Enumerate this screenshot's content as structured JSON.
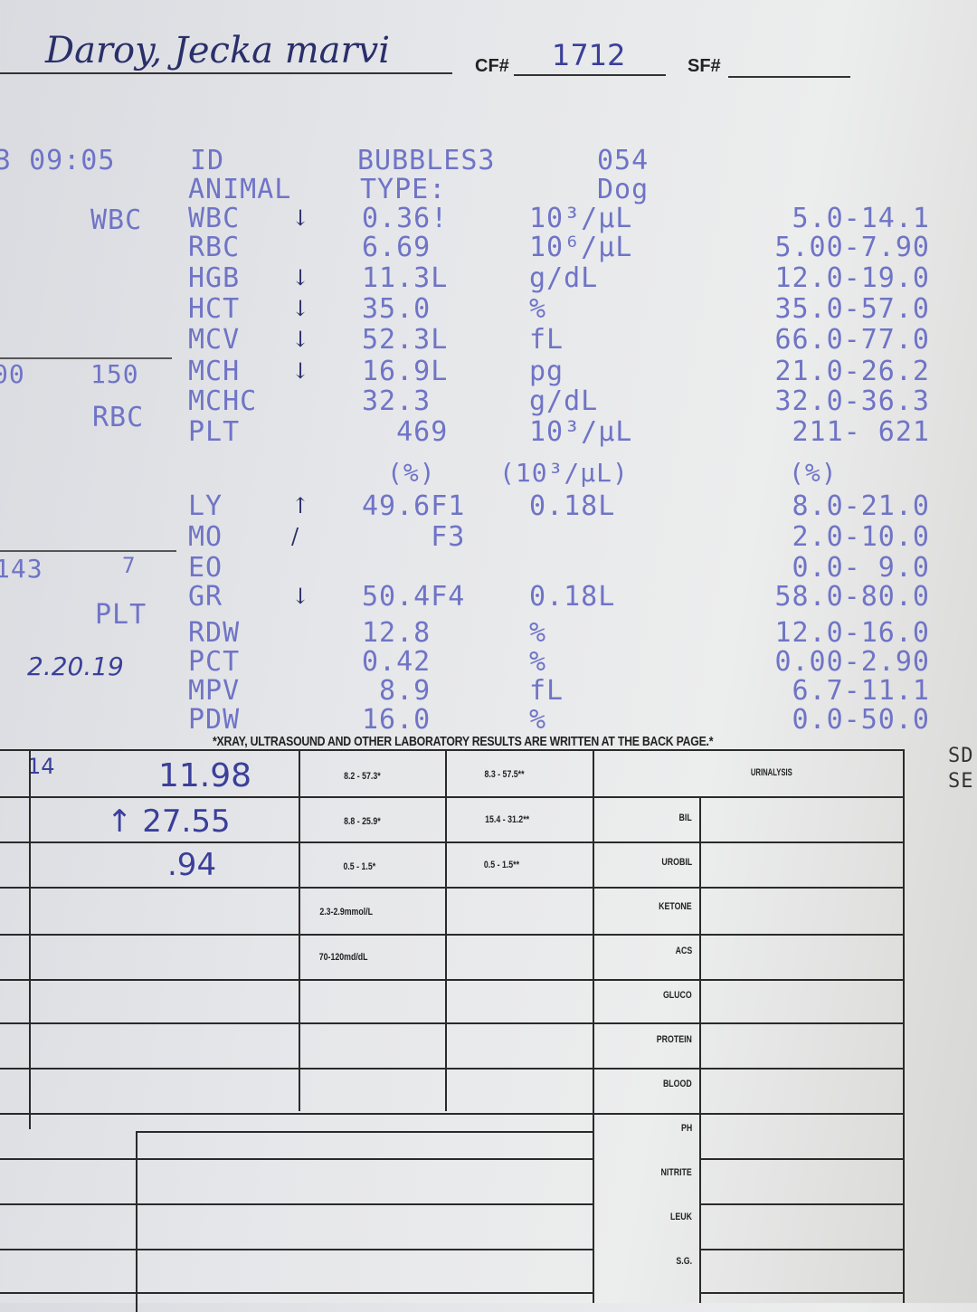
{
  "header": {
    "patient_name": "Daroy, Jecka marvi",
    "cf_label": "CF#",
    "cf_value": "1712",
    "sf_label": "SF#",
    "sf_value": ""
  },
  "printout": {
    "time": "3 09:05",
    "id_label": "ID",
    "id_value": "BUBBLES3",
    "id_number": "054",
    "animal_label": "ANIMAL",
    "type_label": "TYPE:",
    "animal_type": "Dog",
    "rows": [
      {
        "label": "WBC",
        "value": "0.36!",
        "unit": "10³/µL",
        "range": "5.0-14.1",
        "mark": "↓"
      },
      {
        "label": "RBC",
        "value": "6.69",
        "unit": "10⁶/µL",
        "range": "5.00-7.90",
        "mark": ""
      },
      {
        "label": "HGB",
        "value": "11.3L",
        "unit": "g/dL",
        "range": "12.0-19.0",
        "mark": "↓"
      },
      {
        "label": "HCT",
        "value": "35.0",
        "unit": "%",
        "range": "35.0-57.0",
        "mark": "↓"
      },
      {
        "label": "MCV",
        "value": "52.3L",
        "unit": "fL",
        "range": "66.0-77.0",
        "mark": "↓"
      },
      {
        "label": "MCH",
        "value": "16.9L",
        "unit": "pg",
        "range": "21.0-26.2",
        "mark": "↓"
      },
      {
        "label": "MCHC",
        "value": "32.3",
        "unit": "g/dL",
        "range": "32.0-36.3",
        "mark": ""
      },
      {
        "label": "PLT",
        "value": "  469",
        "unit": "10³/µL",
        "range": "211- 621",
        "mark": ""
      }
    ],
    "diff_header": {
      "pct": "(%)",
      "abs": "(10³/µL)",
      "range": "(%)"
    },
    "diff_rows": [
      {
        "label": "LY",
        "value": "49.6F1",
        "abs": "0.18L",
        "range": "8.0-21.0",
        "mark": "↑"
      },
      {
        "label": "MO",
        "value": "    F3",
        "abs": "",
        "range": "2.0-10.0",
        "mark": "/"
      },
      {
        "label": "EO",
        "value": "",
        "abs": "",
        "range": "0.0- 9.0",
        "mark": ""
      },
      {
        "label": "GR",
        "value": "50.4F4",
        "abs": "0.18L",
        "range": "58.0-80.0",
        "mark": "↓"
      }
    ],
    "extra_rows": [
      {
        "label": "RDW",
        "value": "12.8",
        "unit": "%",
        "range": "12.0-16.0"
      },
      {
        "label": "PCT",
        "value": "0.42",
        "unit": "%",
        "range": "0.00-2.90"
      },
      {
        "label": "MPV",
        "value": " 8.9",
        "unit": "fL",
        "range": "6.7-11.1"
      },
      {
        "label": "PDW",
        "value": "16.0",
        "unit": "%",
        "range": "0.0-50.0"
      }
    ]
  },
  "left_margin": {
    "wbc": "WBC",
    "scale_a": "00",
    "scale_b": "150",
    "rbc": "RBC",
    "num_143": "143",
    "num_7": "7",
    "plt": "PLT",
    "date": "2.20.19",
    "num_14": "14"
  },
  "footnote": "*XRAY, ULTRASOUND AND OTHER LABORATORY RESULTS ARE WRITTEN AT THE BACK PAGE.*",
  "chemistry": {
    "handwritten": [
      "11.98",
      "↑ 27.55",
      ".94"
    ],
    "ranges_a": [
      "8.2 - 57.3*",
      "8.8 - 25.9*",
      "0.5 - 1.5*",
      "2.3-2.9mmol/L",
      "70-120md/dL"
    ],
    "ranges_b": [
      "8.3 - 57.5**",
      "15.4 - 31.2**",
      "0.5 - 1.5**"
    ]
  },
  "urinalysis": {
    "title": "URINALYSIS",
    "items": [
      "BIL",
      "UROBIL",
      "KETONE",
      "ACS",
      "GLUCO",
      "PROTEIN",
      "BLOOD",
      "PH",
      "NITRITE",
      "LEUK",
      "S.G."
    ]
  },
  "right_edge": {
    "a": "SD",
    "b": "SE"
  }
}
